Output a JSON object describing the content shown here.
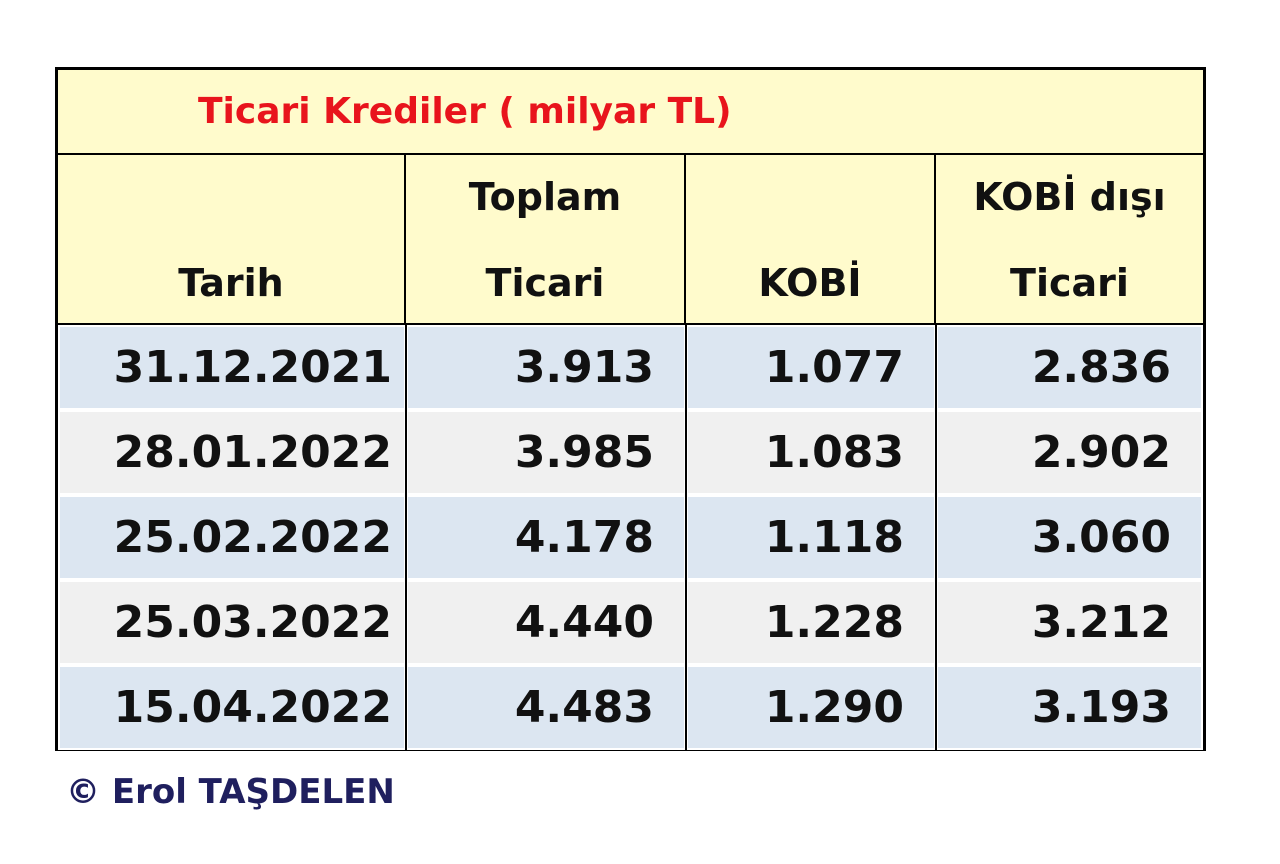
{
  "title": "Ticari Krediler ( milyar TL)",
  "header": [
    [
      "Tarih"
    ],
    [
      "Toplam",
      "Ticari"
    ],
    [
      "KOBİ"
    ],
    [
      "KOBİ dışı",
      "Ticari"
    ]
  ],
  "rows": [
    [
      "31.12.2021",
      "3.913",
      "1.077",
      "2.836"
    ],
    [
      "28.01.2022",
      "3.985",
      "1.083",
      "2.902"
    ],
    [
      "25.02.2022",
      "4.178",
      "1.118",
      "3.060"
    ],
    [
      "25.03.2022",
      "4.440",
      "1.228",
      "3.212"
    ],
    [
      "15.04.2022",
      "4.483",
      "1.290",
      "3.193"
    ]
  ],
  "footer": "© Erol TAŞDELEN"
}
